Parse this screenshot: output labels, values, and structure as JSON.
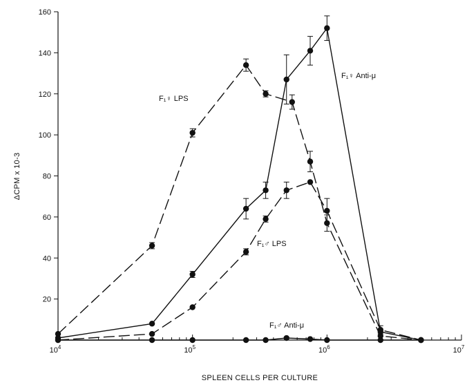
{
  "chart_data": {
    "type": "line",
    "xlabel": "SPLEEN CELLS PER CULTURE",
    "ylabel": "ΔCPM x 10-3",
    "xscale": "log",
    "xlim": [
      10000,
      10000000
    ],
    "ylim": [
      0,
      160
    ],
    "yticks": [
      20,
      40,
      60,
      80,
      100,
      120,
      140,
      160
    ],
    "xticks": [
      {
        "value": 10000,
        "base": "10",
        "exp": "4"
      },
      {
        "value": 100000,
        "base": "10",
        "exp": "5"
      },
      {
        "value": 1000000,
        "base": "10",
        "exp": "6"
      },
      {
        "value": 10000000,
        "base": "10",
        "exp": "7"
      }
    ],
    "grid": false,
    "series": [
      {
        "name": "F₁♀ LPS",
        "style": "dashed",
        "points": [
          {
            "x": 10000,
            "y": 3
          },
          {
            "x": 50000,
            "y": 46,
            "err": 1.5
          },
          {
            "x": 100000,
            "y": 101,
            "err": 2
          },
          {
            "x": 250000,
            "y": 134,
            "err": 3
          },
          {
            "x": 350000,
            "y": 120,
            "err": 1.5
          },
          {
            "x": 550000,
            "y": 116,
            "err": 3.5
          },
          {
            "x": 750000,
            "y": 87,
            "err": 5
          },
          {
            "x": 1000000,
            "y": 57,
            "err": 4
          },
          {
            "x": 2500000,
            "y": 2
          },
          {
            "x": 5000000,
            "y": 0
          }
        ]
      },
      {
        "name": "F₁♀ Anti-μ",
        "style": "solid",
        "points": [
          {
            "x": 10000,
            "y": 1
          },
          {
            "x": 50000,
            "y": 8
          },
          {
            "x": 100000,
            "y": 32,
            "err": 1.5
          },
          {
            "x": 250000,
            "y": 64,
            "err": 5
          },
          {
            "x": 350000,
            "y": 73,
            "err": 4
          },
          {
            "x": 500000,
            "y": 127,
            "err": 12
          },
          {
            "x": 750000,
            "y": 141,
            "err": 7
          },
          {
            "x": 1000000,
            "y": 152,
            "err": 6
          },
          {
            "x": 2500000,
            "y": 4
          },
          {
            "x": 5000000,
            "y": 0
          }
        ]
      },
      {
        "name": "F₁♂ LPS",
        "style": "dashed",
        "points": [
          {
            "x": 10000,
            "y": 0
          },
          {
            "x": 50000,
            "y": 3
          },
          {
            "x": 100000,
            "y": 16
          },
          {
            "x": 250000,
            "y": 43,
            "err": 1.5
          },
          {
            "x": 350000,
            "y": 59,
            "err": 1.5
          },
          {
            "x": 500000,
            "y": 73,
            "err": 4
          },
          {
            "x": 750000,
            "y": 77
          },
          {
            "x": 1000000,
            "y": 63,
            "err": 6
          },
          {
            "x": 2500000,
            "y": 5,
            "err": 2
          },
          {
            "x": 5000000,
            "y": 0
          }
        ]
      },
      {
        "name": "F₁♂ Anti-μ",
        "style": "solid",
        "points": [
          {
            "x": 10000,
            "y": 0
          },
          {
            "x": 50000,
            "y": 0
          },
          {
            "x": 100000,
            "y": 0
          },
          {
            "x": 250000,
            "y": 0
          },
          {
            "x": 350000,
            "y": 0
          },
          {
            "x": 500000,
            "y": 1
          },
          {
            "x": 750000,
            "y": 0.5
          },
          {
            "x": 1000000,
            "y": 0
          },
          {
            "x": 2500000,
            "y": 0
          },
          {
            "x": 5000000,
            "y": 0
          }
        ]
      }
    ]
  }
}
